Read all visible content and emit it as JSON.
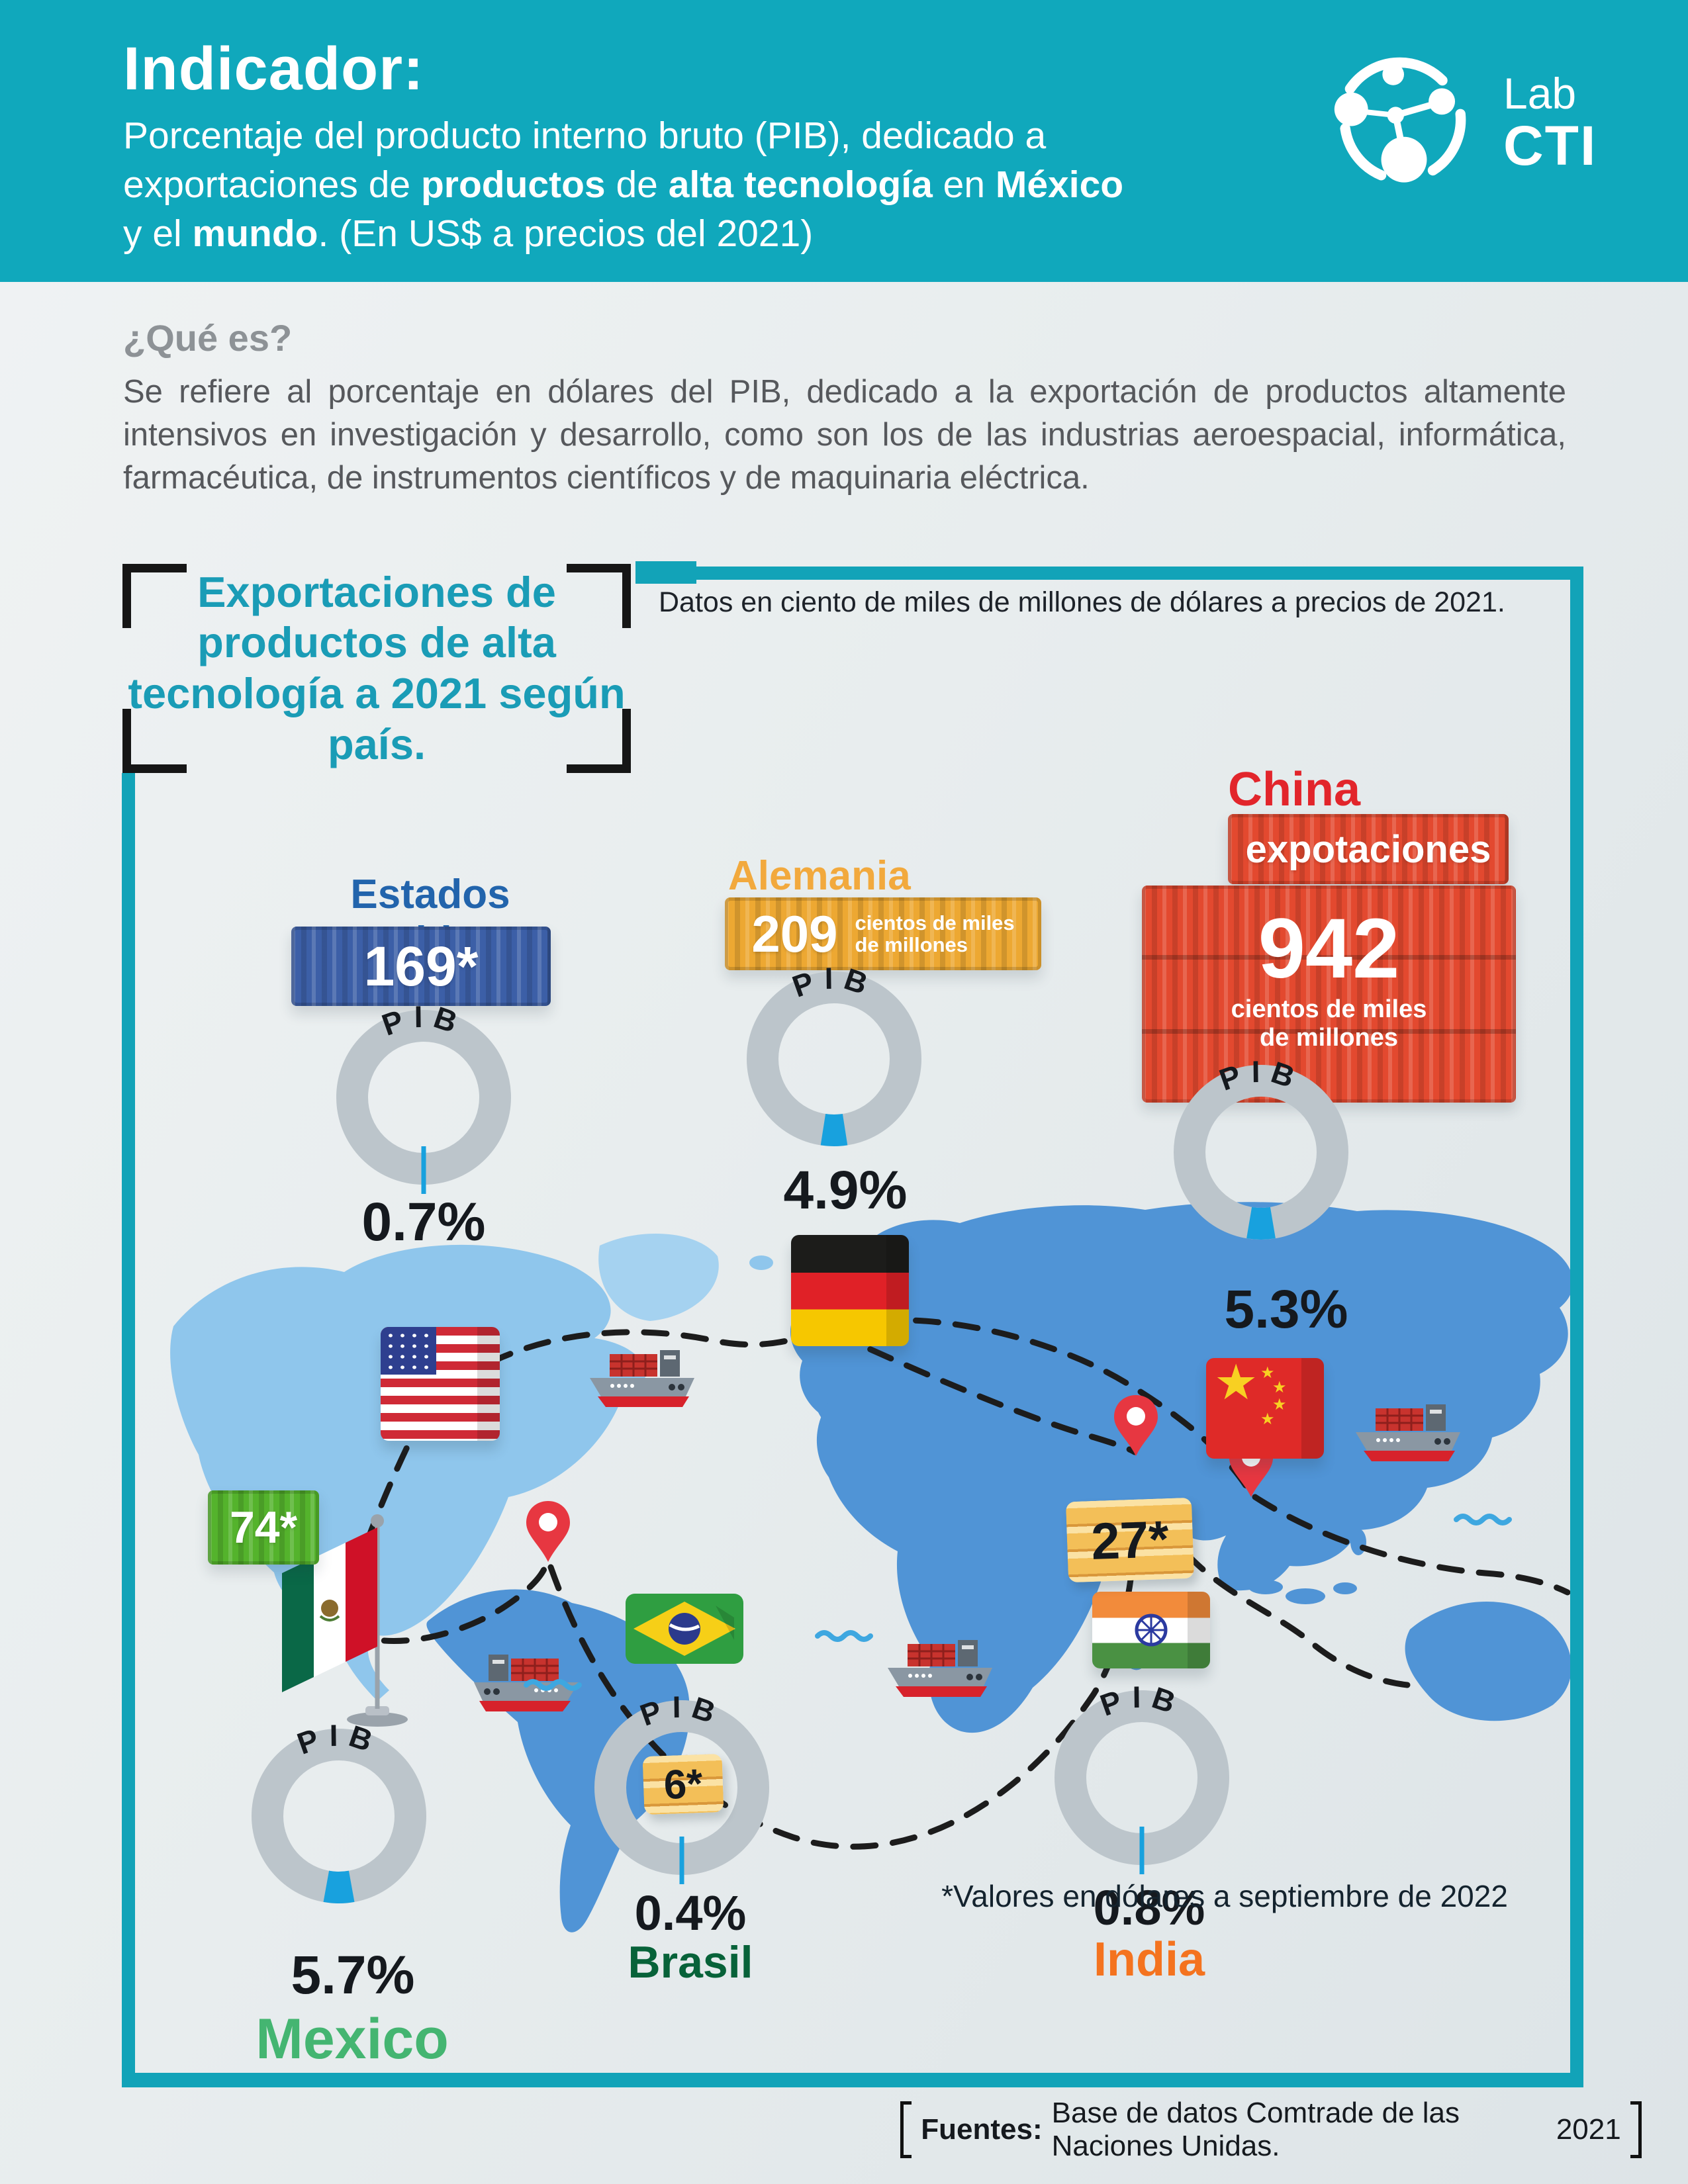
{
  "header": {
    "title": "Indicador:",
    "subtitle_lines": [
      [
        {
          "t": "Porcentaje del producto interno bruto (PIB), dedicado a",
          "b": false
        }
      ],
      [
        {
          "t": "exportaciones de ",
          "b": false
        },
        {
          "t": "productos",
          "b": true
        },
        {
          "t": " de ",
          "b": false
        },
        {
          "t": "alta tecnología",
          "b": true
        },
        {
          "t": " en ",
          "b": false
        },
        {
          "t": "México",
          "b": true
        }
      ],
      [
        {
          "t": "y el ",
          "b": false
        },
        {
          "t": "mundo",
          "b": true
        },
        {
          "t": ". (En US$ a precios del 2021)",
          "b": false
        }
      ]
    ],
    "logo_lab": "Lab",
    "logo_cti": "CTI"
  },
  "about": {
    "heading": "¿Qué es?",
    "body": "Se refiere al porcentaje en dólares del PIB, dedicado a la exportación de  productos altamente intensivos en investigación y desarrollo, como son los de las industrias aeroespacial, informática, farmacéutica, de instrumentos científicos y de maquinaria eléctrica."
  },
  "chart_data": {
    "type": "pie",
    "title": "Exportaciones de productos de alta tecnología a 2021 según país.",
    "note": "Datos en ciento de miles de millones de dólares a precios de 2021.",
    "donut_word": "PIB",
    "legend_position": "none",
    "unit": "cientos de miles de millones de dólares a precios de 2021",
    "countries": [
      {
        "name": "Estados Unidos",
        "exports_value": "169*",
        "exports_numeric": 169,
        "pib_pct": 0.7,
        "pib_label": "0.7%",
        "container_color": "#3c5fa7",
        "name_color": "#2264ac"
      },
      {
        "name": "Alemania",
        "exports_value": "209",
        "exports_numeric": 209,
        "unit_line1": "cientos de miles",
        "unit_line2": "de millones",
        "pib_pct": 4.9,
        "pib_label": "4.9%",
        "container_color": "#eda832",
        "name_color": "#f2a93d"
      },
      {
        "name": "China",
        "container_word": "expotaciones",
        "exports_value": "942",
        "exports_numeric": 942,
        "unit_line1": "cientos de miles",
        "unit_line2": "de millones",
        "pib_pct": 5.3,
        "pib_label": "5.3%",
        "container_color": "#e3492f",
        "name_color": "#e2252b"
      },
      {
        "name": "Mexico",
        "exports_value": "74*",
        "exports_numeric": 74,
        "pib_pct": 5.7,
        "pib_label": "5.7%",
        "container_color": "#54b32c",
        "name_color": "#44b571"
      },
      {
        "name": "Brasil",
        "exports_value": "6*",
        "exports_numeric": 6,
        "pib_pct": 0.4,
        "pib_label": "0.4%",
        "name_color": "#076239"
      },
      {
        "name": "India",
        "exports_value": "27*",
        "exports_numeric": 27,
        "pib_pct": 0.8,
        "pib_label": "0.8%",
        "name_color": "#f4731f"
      }
    ],
    "footnote": "*Valores en dólares a septiembre de 2022",
    "wedge_color": "#18a1de",
    "ring_color": "#bcc5cb"
  },
  "footer": {
    "label": "Fuentes:",
    "text": "Base de datos Comtrade de las Naciones Unidas.",
    "year": "2021"
  }
}
